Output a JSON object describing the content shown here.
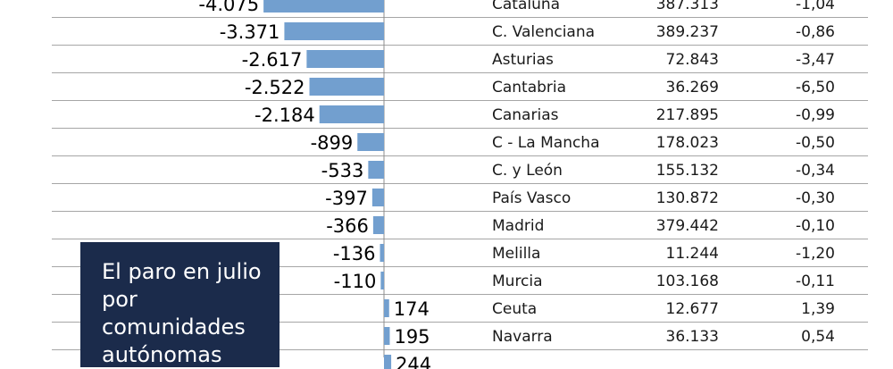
{
  "chart_data": {
    "type": "bar",
    "orientation": "horizontal",
    "title": "El paro en julio por comunidades autónomas",
    "categories": [
      "Cataluña",
      "C. Valenciana",
      "Asturias",
      "Cantabria",
      "Canarias",
      "C - La Mancha",
      "C. y León",
      "País Vasco",
      "Madrid",
      "Melilla",
      "Murcia",
      "Ceuta",
      "Navarra",
      ""
    ],
    "values": [
      -4075,
      -3371,
      -2617,
      -2522,
      -2184,
      -899,
      -533,
      -397,
      -366,
      -136,
      -110,
      174,
      195,
      244
    ],
    "value_labels": [
      "-4.075",
      "-3.371",
      "-2.617",
      "-2.522",
      "-2.184",
      "-899",
      "-533",
      "-397",
      "-366",
      "-136",
      "-110",
      "174",
      "195",
      "244"
    ],
    "totals": [
      "387.313",
      "389.237",
      "72.843",
      "36.269",
      "217.895",
      "178.023",
      "155.132",
      "130.872",
      "379.442",
      "11.244",
      "103.168",
      "12.677",
      "36.133",
      ""
    ],
    "pct_change": [
      "-1,04",
      "-0,86",
      "-3,47",
      "-6,50",
      "-0,99",
      "-0,50",
      "-0,34",
      "-0,30",
      "-0,10",
      "-1,20",
      "-0,11",
      "1,39",
      "0,54",
      ""
    ],
    "bar_color": "#729fcf",
    "grid": true
  }
}
